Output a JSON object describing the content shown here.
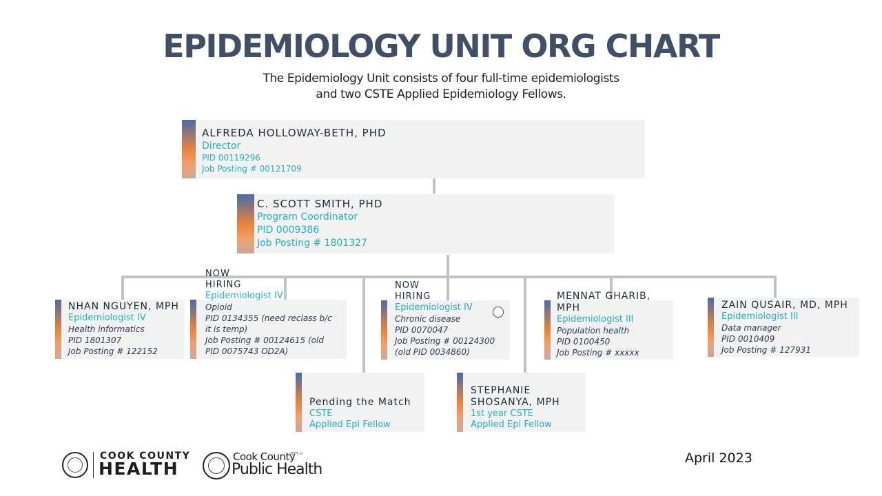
{
  "title": "EPIDEMIOLOGY UNIT ORG CHART",
  "subtitle": {
    "line1": "The Epidemiology Unit consists of four full-time epidemiologists",
    "line2": "and two CSTE Applied Epidemiology Fellows."
  },
  "director": {
    "name": "ALFREDA HOLLOWAY-BETH, PHD",
    "role": "Director",
    "pid": "PID 00119296",
    "posting": "Job Posting # 00121709"
  },
  "coordinator": {
    "name": "C. SCOTT SMITH, PHD",
    "role": "Program Coordinator",
    "pid": "PID 0009386",
    "posting": "Job Posting # 1801327"
  },
  "staff": [
    {
      "name": "NHAN NGUYEN, MPH",
      "role": "Epidemiologist IV",
      "focus": "Health informatics",
      "pid": "PID 1801307",
      "posting": "Job Posting # 122152"
    },
    {
      "hiring_line1": "NOW",
      "hiring_line2": "HIRING",
      "role": "Epidemiologist IV",
      "focus": "Opioid",
      "pid_line1": "PID 0134355 (need reclass b/c",
      "pid_line2": "it is temp)",
      "posting_line1": "Job Posting # 00124615 (old",
      "posting_line2": "PID 0075743 OD2A)"
    },
    {
      "hiring_line1": "NOW",
      "hiring_line2": "HIRING",
      "role": "Epidemiologist IV",
      "focus": "Chronic disease",
      "pid": "PID 0070047",
      "posting_line1": "Job Posting # 00124300",
      "posting_line2": "(old PID 0034860)"
    },
    {
      "name_line1": "MENNAT GHARIB,",
      "name_line2": "MPH",
      "role": "Epidemiologist III",
      "focus": "Population health",
      "pid": "PID 0100450",
      "posting": "Job Posting # xxxxx"
    },
    {
      "name": "ZAIN QUSAIR, MD, MPH",
      "role": "Epidemiologist III",
      "focus": "Data manager",
      "pid": "PID 0010409",
      "posting": "Job Posting # 127931"
    }
  ],
  "fellows": [
    {
      "name": "Pending the Match",
      "role": "CSTE",
      "program": "Applied Epi Fellow"
    },
    {
      "name_line1": "STEPHANIE",
      "name_line2": "SHOSANYA, MPH",
      "role": "1st year CSTE",
      "program": "Applied Epi Fellow"
    }
  ],
  "footer": {
    "date": "April 2023",
    "logo1_line1": "COOK COUNTY",
    "logo1_line2": "HEALTH",
    "logo2_line1": "Cook County",
    "logo2_line2": "Public Health",
    "logo2_dept": "DEPT of"
  },
  "colors": {
    "title": "#3e4f66",
    "accent_teal": "#1fb2bd",
    "card_bg": "#f2f2f2",
    "connector": "#c2c2c2"
  }
}
